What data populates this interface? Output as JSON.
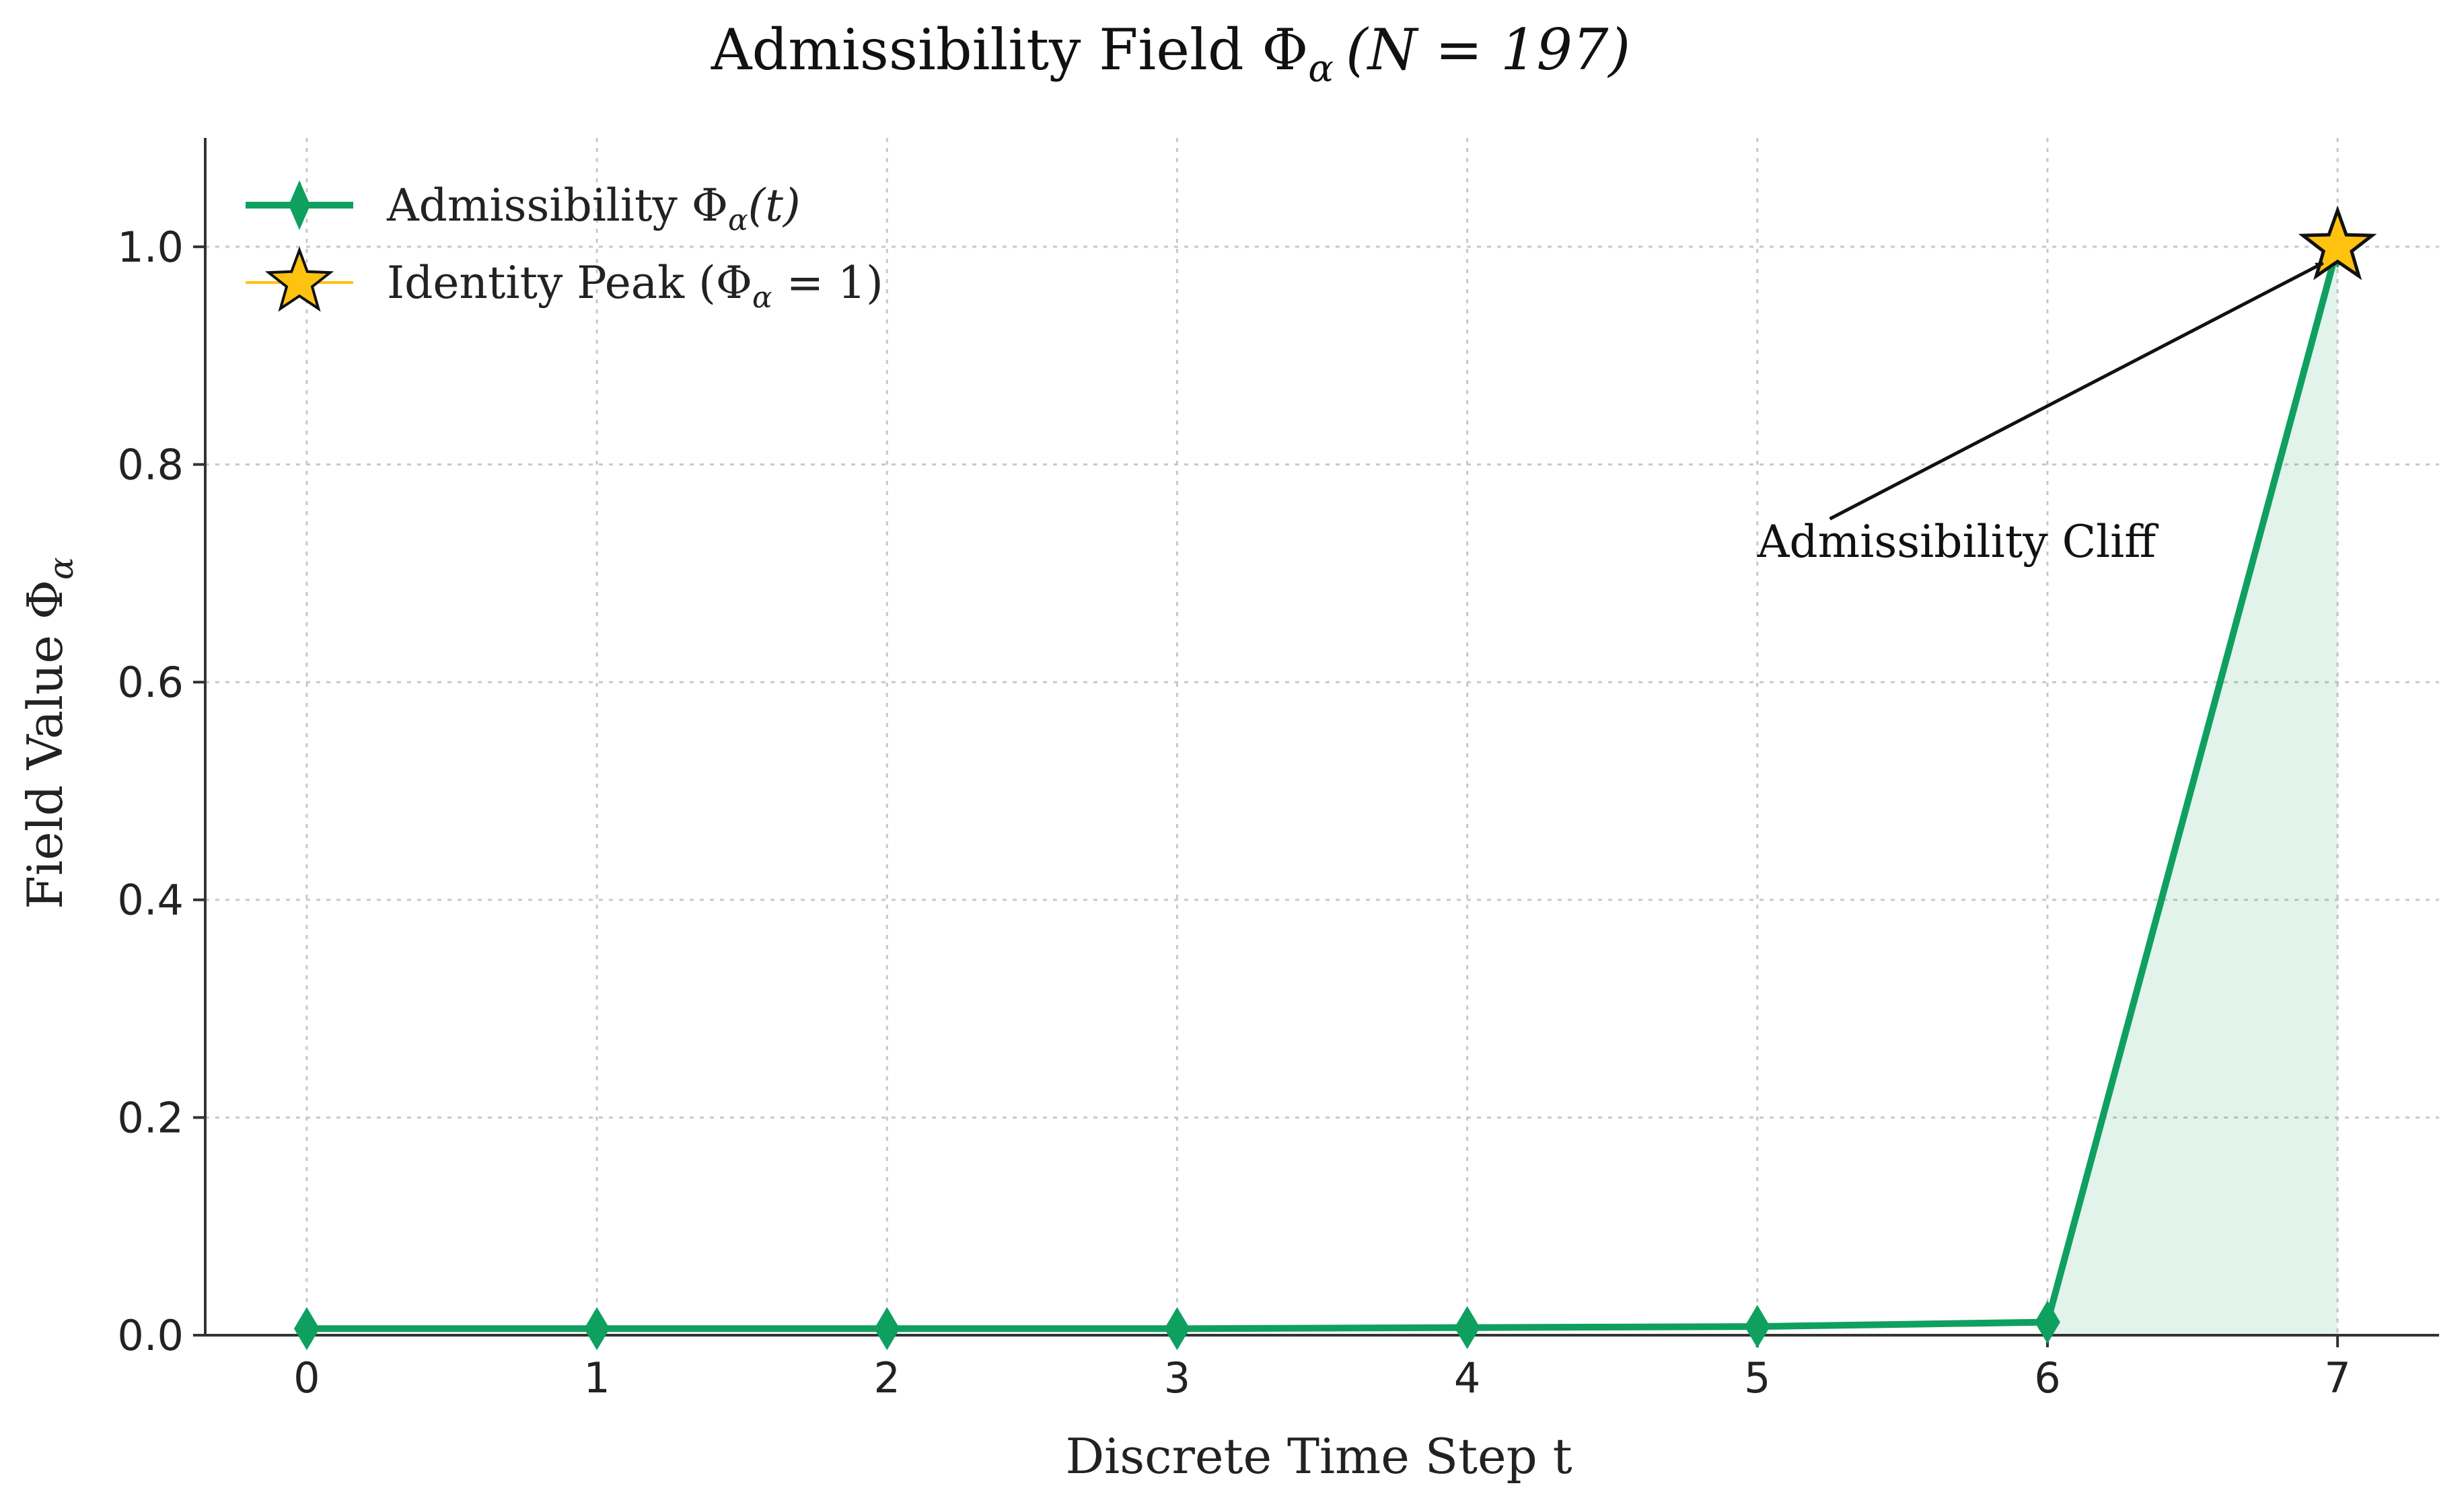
{
  "chart_data": {
    "type": "line",
    "title": "Admissibility Field Φ",
    "title_sub": "α",
    "title_tail": "(N = 197)",
    "xlabel": "Discrete Time Step t",
    "ylabel": "Field Value Φ",
    "ylabel_sub": "α",
    "xlim": [
      -0.35,
      7.35
    ],
    "ylim": [
      0.0,
      1.1
    ],
    "x_ticks": [
      0,
      1,
      2,
      3,
      4,
      5,
      6,
      7
    ],
    "x_tick_labels": [
      "0",
      "1",
      "2",
      "3",
      "4",
      "5",
      "6",
      "7"
    ],
    "y_ticks": [
      0.0,
      0.2,
      0.4,
      0.6,
      0.8,
      1.0
    ],
    "y_tick_labels": [
      "0.0",
      "0.2",
      "0.4",
      "0.6",
      "0.8",
      "1.0"
    ],
    "grid": true,
    "legend_position": "top-left",
    "series": [
      {
        "name": "Admissibility Φ",
        "name_sub": "α",
        "name_tail": "(t)",
        "x": [
          0,
          1,
          2,
          3,
          4,
          5,
          6,
          7
        ],
        "y": [
          0.006,
          0.006,
          0.006,
          0.006,
          0.007,
          0.008,
          0.012,
          1.0
        ],
        "color": "#0fa060",
        "marker": "thin-diamond",
        "fill_between_x": [
          6,
          7
        ],
        "fill_color": "#0fa060"
      }
    ],
    "highlight": {
      "name": "Identity Peak (Φ",
      "name_sub": "α",
      "name_tail": " = 1)",
      "x": 7,
      "y": 1.0,
      "marker": "star",
      "color": "#ffc20e"
    },
    "annotations": [
      {
        "text": "Admissibility Cliff",
        "text_anchor_x": 5.0,
        "text_anchor_y": 0.715,
        "arrow_from_x": 5.25,
        "arrow_from_y": 0.75,
        "arrow_to_x": 6.95,
        "arrow_to_y": 0.985
      }
    ]
  }
}
